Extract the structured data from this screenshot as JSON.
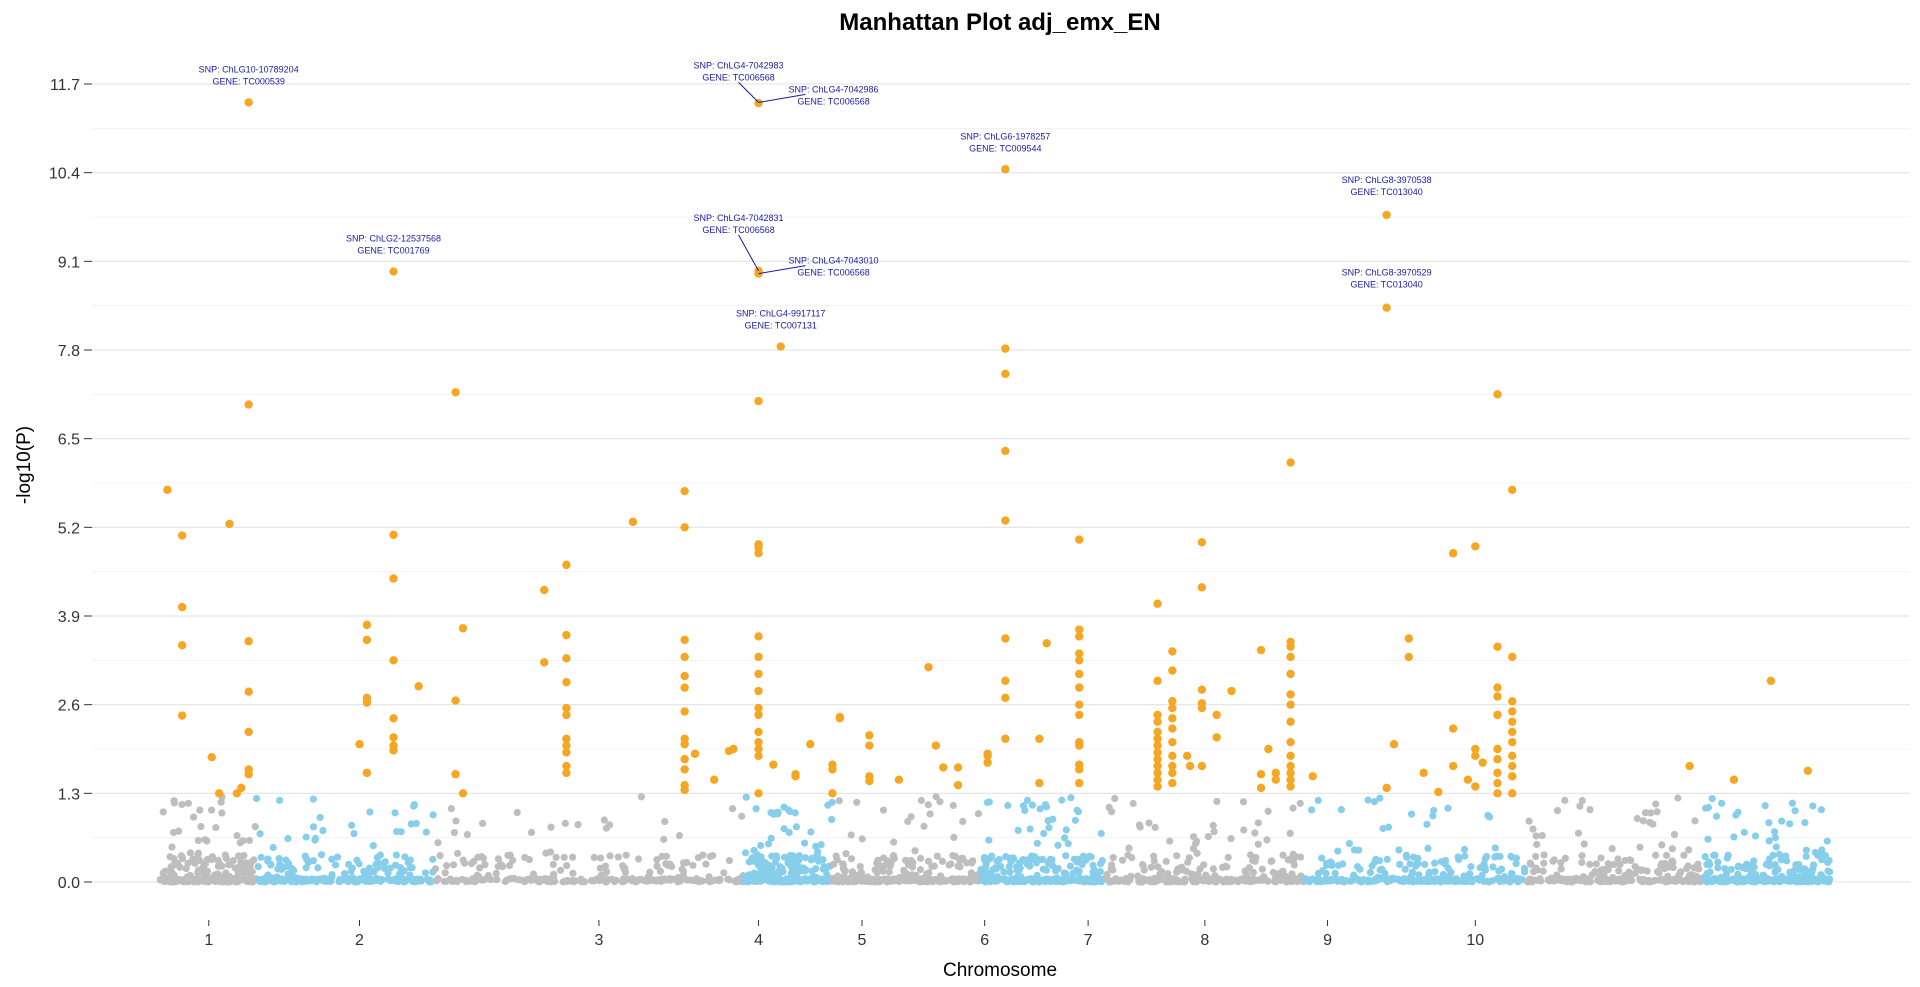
{
  "chart_data": {
    "type": "scatter",
    "title": "Manhattan Plot adj_emx_EN",
    "xlabel": "Chromosome",
    "ylabel": "-log10(P)",
    "ylim": [
      -0.35,
      12.3
    ],
    "yticks": [
      "0.0",
      "1.3",
      "2.6",
      "3.9",
      "5.2",
      "6.5",
      "7.8",
      "9.1",
      "10.4",
      "11.7"
    ],
    "grid": true,
    "legend": "none",
    "colors": {
      "chrom_odd": "#bebebe",
      "chrom_even": "#87ceeb",
      "significant": "#f5a623",
      "annotation": "#1a1aa6"
    },
    "significance_threshold": 1.3,
    "chromosomes": [
      {
        "label": "1",
        "start": 0.0,
        "end": 0.7
      },
      {
        "label": "2",
        "start": 0.7,
        "end": 2.0
      },
      {
        "label": "3",
        "start": 2.0,
        "end": 3.95
      },
      {
        "label": "4",
        "start": 3.95,
        "end": 5.0
      },
      {
        "label": "5",
        "start": 5.0,
        "end": 6.1
      },
      {
        "label": "6",
        "start": 6.1,
        "end": 6.9
      },
      {
        "label": "7",
        "start": 6.9,
        "end": 8.45
      },
      {
        "label": "8",
        "start": 8.45,
        "end": 9.3
      },
      {
        "label": "9",
        "start": 9.3,
        "end": 10.45
      },
      {
        "label": "10",
        "start": 10.45,
        "end": 11.3
      }
    ],
    "highlighted_points": [
      [
        0.05,
        5.75
      ],
      [
        0.15,
        5.08
      ],
      [
        0.15,
        4.03
      ],
      [
        0.15,
        3.47
      ],
      [
        0.15,
        2.44
      ],
      [
        0.47,
        5.25
      ],
      [
        0.6,
        11.43
      ],
      [
        0.6,
        7.0
      ],
      [
        0.6,
        3.53
      ],
      [
        0.6,
        2.79
      ],
      [
        0.6,
        2.2
      ],
      [
        0.6,
        1.65
      ],
      [
        0.6,
        1.58
      ],
      [
        0.35,
        1.83
      ],
      [
        0.4,
        1.3
      ],
      [
        0.55,
        1.38
      ],
      [
        0.52,
        1.3
      ],
      [
        1.4,
        3.77
      ],
      [
        1.4,
        3.55
      ],
      [
        1.4,
        2.7
      ],
      [
        1.4,
        2.63
      ],
      [
        1.35,
        2.02
      ],
      [
        1.4,
        1.6
      ],
      [
        1.58,
        8.95
      ],
      [
        1.58,
        5.09
      ],
      [
        1.58,
        4.45
      ],
      [
        1.58,
        3.25
      ],
      [
        1.58,
        2.4
      ],
      [
        1.58,
        2.12
      ],
      [
        1.58,
        2.0
      ],
      [
        1.58,
        1.93
      ],
      [
        1.75,
        2.87
      ],
      [
        2.0,
        7.18
      ],
      [
        2.0,
        2.66
      ],
      [
        2.0,
        1.58
      ],
      [
        2.05,
        3.72
      ],
      [
        2.05,
        1.3
      ],
      [
        2.6,
        4.28
      ],
      [
        2.6,
        3.22
      ],
      [
        2.75,
        4.65
      ],
      [
        2.75,
        3.62
      ],
      [
        2.75,
        3.28
      ],
      [
        2.75,
        2.93
      ],
      [
        2.75,
        2.55
      ],
      [
        2.75,
        2.45
      ],
      [
        2.75,
        2.1
      ],
      [
        2.75,
        2.0
      ],
      [
        2.75,
        1.9
      ],
      [
        2.75,
        1.7
      ],
      [
        2.75,
        1.6
      ],
      [
        3.2,
        5.28
      ],
      [
        3.55,
        5.73
      ],
      [
        3.55,
        5.2
      ],
      [
        3.55,
        3.55
      ],
      [
        3.55,
        3.3
      ],
      [
        3.55,
        3.02
      ],
      [
        3.55,
        2.85
      ],
      [
        3.55,
        2.5
      ],
      [
        3.55,
        2.1
      ],
      [
        3.55,
        2.02
      ],
      [
        3.55,
        1.8
      ],
      [
        3.55,
        1.65
      ],
      [
        3.55,
        1.42
      ],
      [
        3.55,
        1.35
      ],
      [
        3.62,
        1.88
      ],
      [
        3.75,
        1.5
      ],
      [
        3.88,
        1.95
      ],
      [
        3.85,
        1.92
      ],
      [
        4.05,
        11.42
      ],
      [
        4.05,
        8.96
      ],
      [
        4.05,
        8.92
      ],
      [
        4.05,
        7.05
      ],
      [
        4.05,
        4.95
      ],
      [
        4.05,
        4.9
      ],
      [
        4.05,
        4.82
      ],
      [
        4.05,
        3.6
      ],
      [
        4.05,
        3.3
      ],
      [
        4.05,
        3.05
      ],
      [
        4.05,
        2.8
      ],
      [
        4.05,
        2.55
      ],
      [
        4.05,
        2.45
      ],
      [
        4.05,
        2.2
      ],
      [
        4.05,
        2.05
      ],
      [
        4.05,
        1.95
      ],
      [
        4.05,
        1.85
      ],
      [
        4.05,
        1.3
      ],
      [
        4.2,
        7.85
      ],
      [
        4.15,
        1.72
      ],
      [
        4.3,
        1.58
      ],
      [
        4.3,
        1.55
      ],
      [
        4.4,
        2.02
      ],
      [
        4.6,
        2.42
      ],
      [
        4.6,
        2.4
      ],
      [
        4.55,
        1.72
      ],
      [
        4.55,
        1.65
      ],
      [
        4.55,
        1.3
      ],
      [
        4.8,
        2.15
      ],
      [
        4.8,
        2.0
      ],
      [
        4.8,
        1.55
      ],
      [
        4.8,
        1.48
      ],
      [
        5.0,
        1.5
      ],
      [
        5.2,
        3.15
      ],
      [
        5.25,
        2.0
      ],
      [
        5.3,
        1.68
      ],
      [
        5.4,
        1.68
      ],
      [
        5.4,
        1.42
      ],
      [
        5.6,
        1.88
      ],
      [
        5.6,
        1.85
      ],
      [
        5.6,
        1.75
      ],
      [
        5.72,
        10.45
      ],
      [
        5.72,
        7.82
      ],
      [
        5.72,
        7.45
      ],
      [
        5.72,
        6.32
      ],
      [
        5.72,
        5.3
      ],
      [
        5.72,
        3.57
      ],
      [
        5.72,
        2.95
      ],
      [
        5.72,
        2.7
      ],
      [
        5.72,
        2.1
      ],
      [
        5.95,
        2.1
      ],
      [
        5.95,
        1.45
      ],
      [
        6.0,
        3.5
      ],
      [
        6.22,
        5.02
      ],
      [
        6.22,
        3.7
      ],
      [
        6.22,
        3.6
      ],
      [
        6.22,
        3.35
      ],
      [
        6.22,
        3.25
      ],
      [
        6.22,
        3.05
      ],
      [
        6.22,
        2.85
      ],
      [
        6.22,
        2.6
      ],
      [
        6.22,
        2.45
      ],
      [
        6.22,
        2.05
      ],
      [
        6.22,
        2.0
      ],
      [
        6.22,
        1.72
      ],
      [
        6.22,
        1.65
      ],
      [
        6.22,
        1.45
      ],
      [
        6.75,
        4.08
      ],
      [
        6.75,
        2.95
      ],
      [
        6.75,
        2.45
      ],
      [
        6.75,
        2.35
      ],
      [
        6.75,
        2.2
      ],
      [
        6.75,
        2.1
      ],
      [
        6.75,
        2.0
      ],
      [
        6.75,
        1.9
      ],
      [
        6.75,
        1.8
      ],
      [
        6.75,
        1.7
      ],
      [
        6.75,
        1.6
      ],
      [
        6.75,
        1.5
      ],
      [
        6.75,
        1.4
      ],
      [
        6.85,
        3.38
      ],
      [
        6.85,
        3.1
      ],
      [
        6.85,
        2.65
      ],
      [
        6.85,
        2.55
      ],
      [
        6.85,
        2.4
      ],
      [
        6.85,
        2.25
      ],
      [
        6.85,
        2.05
      ],
      [
        6.85,
        1.85
      ],
      [
        6.85,
        1.7
      ],
      [
        6.85,
        1.6
      ],
      [
        6.85,
        1.45
      ],
      [
        6.95,
        1.85
      ],
      [
        6.97,
        1.7
      ],
      [
        7.05,
        4.98
      ],
      [
        7.05,
        4.32
      ],
      [
        7.05,
        2.82
      ],
      [
        7.05,
        2.62
      ],
      [
        7.05,
        2.55
      ],
      [
        7.05,
        1.7
      ],
      [
        7.15,
        2.45
      ],
      [
        7.15,
        2.12
      ],
      [
        7.25,
        2.8
      ],
      [
        7.45,
        3.4
      ],
      [
        7.45,
        1.58
      ],
      [
        7.45,
        1.38
      ],
      [
        7.5,
        1.95
      ],
      [
        7.55,
        1.6
      ],
      [
        7.55,
        1.5
      ],
      [
        7.65,
        6.15
      ],
      [
        7.65,
        3.52
      ],
      [
        7.65,
        3.45
      ],
      [
        7.65,
        3.3
      ],
      [
        7.65,
        3.05
      ],
      [
        7.65,
        2.75
      ],
      [
        7.65,
        2.6
      ],
      [
        7.65,
        2.35
      ],
      [
        7.65,
        2.05
      ],
      [
        7.65,
        1.85
      ],
      [
        7.65,
        1.7
      ],
      [
        7.65,
        1.6
      ],
      [
        7.65,
        1.5
      ],
      [
        7.65,
        1.4
      ],
      [
        7.8,
        1.55
      ],
      [
        8.3,
        9.78
      ],
      [
        8.3,
        8.42
      ],
      [
        8.3,
        1.38
      ],
      [
        8.35,
        2.02
      ],
      [
        8.45,
        3.57
      ],
      [
        8.45,
        3.3
      ],
      [
        8.55,
        1.6
      ],
      [
        8.75,
        4.82
      ],
      [
        8.75,
        2.25
      ],
      [
        8.75,
        1.7
      ],
      [
        8.65,
        1.32
      ],
      [
        8.85,
        1.5
      ],
      [
        8.9,
        4.92
      ],
      [
        8.9,
        1.95
      ],
      [
        8.9,
        1.85
      ],
      [
        8.95,
        1.75
      ],
      [
        8.9,
        1.4
      ],
      [
        9.05,
        7.15
      ],
      [
        9.05,
        3.45
      ],
      [
        9.05,
        2.85
      ],
      [
        9.05,
        2.72
      ],
      [
        9.05,
        2.45
      ],
      [
        9.05,
        1.95
      ],
      [
        9.05,
        1.8
      ],
      [
        9.05,
        1.6
      ],
      [
        9.05,
        1.45
      ],
      [
        9.05,
        1.3
      ],
      [
        9.15,
        5.75
      ],
      [
        9.15,
        3.3
      ],
      [
        9.15,
        2.65
      ],
      [
        9.15,
        2.5
      ],
      [
        9.15,
        2.35
      ],
      [
        9.15,
        2.2
      ],
      [
        9.15,
        2.05
      ],
      [
        9.15,
        1.85
      ],
      [
        9.15,
        1.7
      ],
      [
        9.15,
        1.55
      ],
      [
        9.15,
        1.3
      ],
      [
        10.35,
        1.7
      ],
      [
        10.65,
        1.5
      ],
      [
        10.9,
        2.95
      ],
      [
        11.15,
        1.63
      ]
    ],
    "annotations": [
      {
        "snp": "SNP:  ChLG10-10789204",
        "gene": "GENE:  TC000539",
        "x": 0.6,
        "y": 11.43
      },
      {
        "snp": "SNP:  ChLG4-7042983",
        "gene": "GENE:  TC006568",
        "x": 4.05,
        "y": 11.43
      },
      {
        "snp": "SNP:  ChLG4-7042986",
        "gene": "GENE:  TC006568",
        "x": 4.05,
        "y": 11.43
      },
      {
        "snp": "SNP:  ChLG6-1978257",
        "gene": "GENE:  TC009544",
        "x": 5.72,
        "y": 10.45
      },
      {
        "snp": "SNP:  ChLG8-3970538",
        "gene": "GENE:  TC013040",
        "x": 8.3,
        "y": 9.78
      },
      {
        "snp": "SNP:  ChLG4-7042831",
        "gene": "GENE:  TC006568",
        "x": 4.05,
        "y": 8.96
      },
      {
        "snp": "SNP:  ChLG4-7043010",
        "gene": "GENE:  TC006568",
        "x": 4.05,
        "y": 8.92
      },
      {
        "snp": "SNP:  ChLG2-12537568",
        "gene": "GENE:  TC001769",
        "x": 1.58,
        "y": 8.95
      },
      {
        "snp": "SNP:  ChLG8-3970529",
        "gene": "GENE:  TC013040",
        "x": 8.3,
        "y": 8.42
      },
      {
        "snp": "SNP:  ChLG4-9917117",
        "gene": "GENE:  TC007131",
        "x": 4.2,
        "y": 7.85
      }
    ],
    "background_points_per_chromosome": 260
  }
}
